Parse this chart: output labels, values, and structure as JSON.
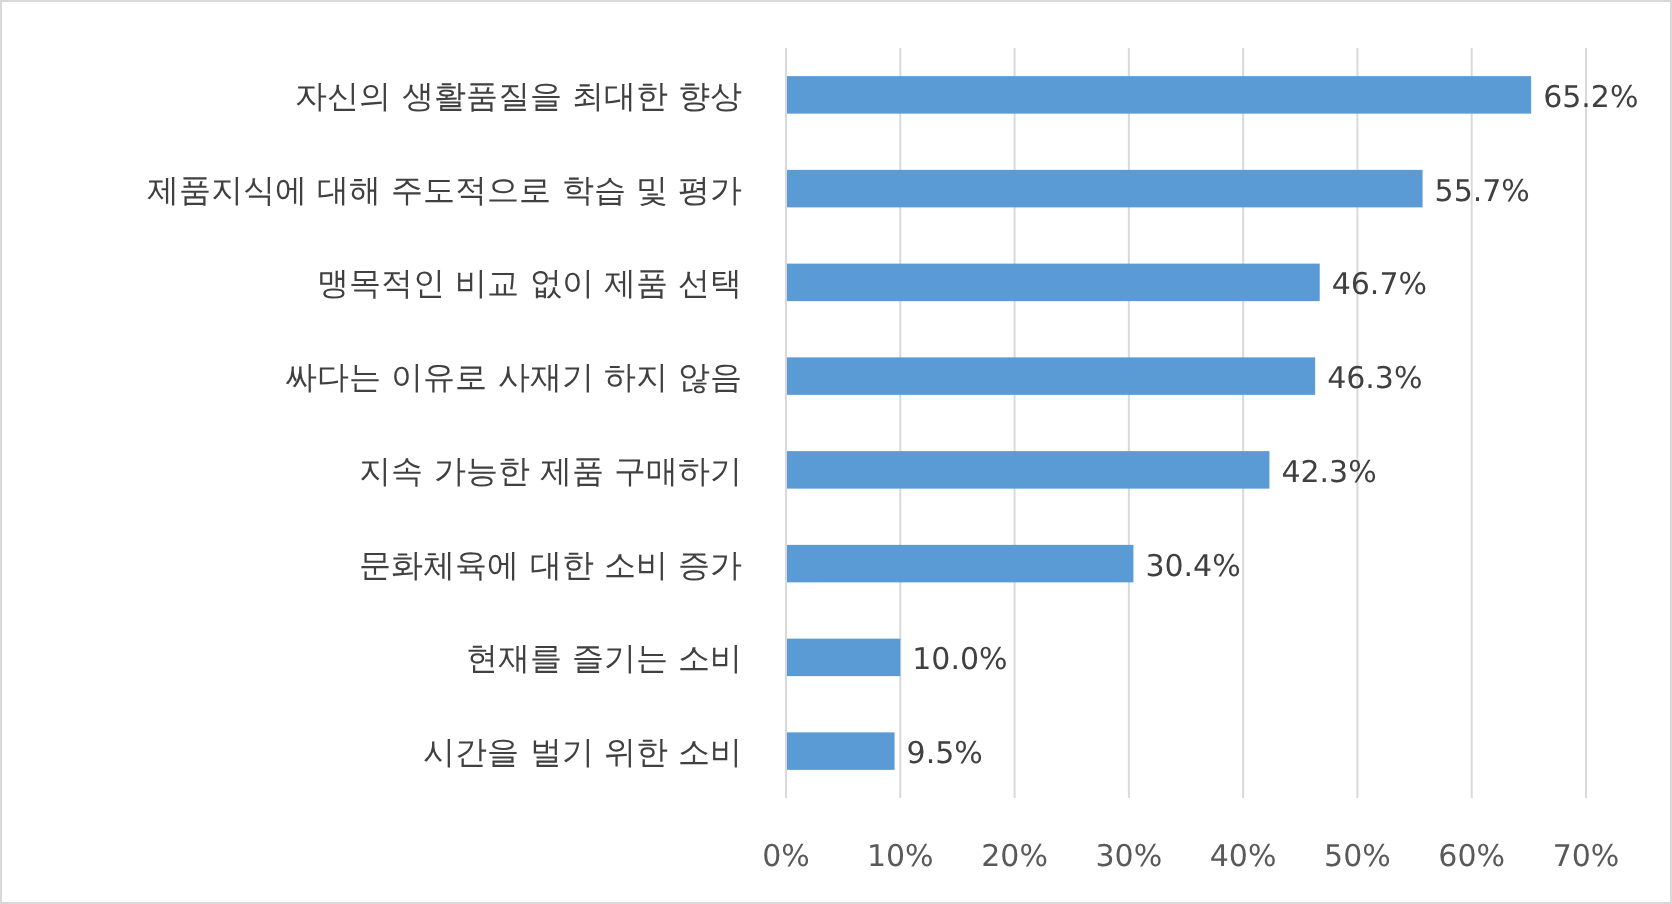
{
  "chart_data": {
    "type": "bar",
    "orientation": "horizontal",
    "categories": [
      "자신의 생활품질을 최대한 향상",
      "제품지식에 대해 주도적으로 학습 및 평가",
      "맹목적인 비교 없이 제품 선택",
      "싸다는 이유로 사재기 하지 않음",
      "지속 가능한 제품 구매하기",
      "문화체육에 대한 소비 증가",
      "현재를 즐기는 소비",
      "시간을 벌기 위한 소비"
    ],
    "values": [
      65.2,
      55.7,
      46.7,
      46.3,
      42.3,
      30.4,
      10.0,
      9.5
    ],
    "value_labels": [
      "65.2%",
      "55.7%",
      "46.7%",
      "46.3%",
      "42.3%",
      "30.4%",
      "10.0%",
      "9.5%"
    ],
    "color": "#5b9bd5",
    "xlim": [
      0,
      70
    ],
    "xticks": [
      {
        "value": 0,
        "label": "0%"
      },
      {
        "value": 10,
        "label": "10%"
      },
      {
        "value": 20,
        "label": "20%"
      },
      {
        "value": 30,
        "label": "30%"
      },
      {
        "value": 40,
        "label": "40%"
      },
      {
        "value": 50,
        "label": "50%"
      },
      {
        "value": 60,
        "label": "60%"
      },
      {
        "value": 70,
        "label": "70%"
      }
    ],
    "grid": "x"
  }
}
